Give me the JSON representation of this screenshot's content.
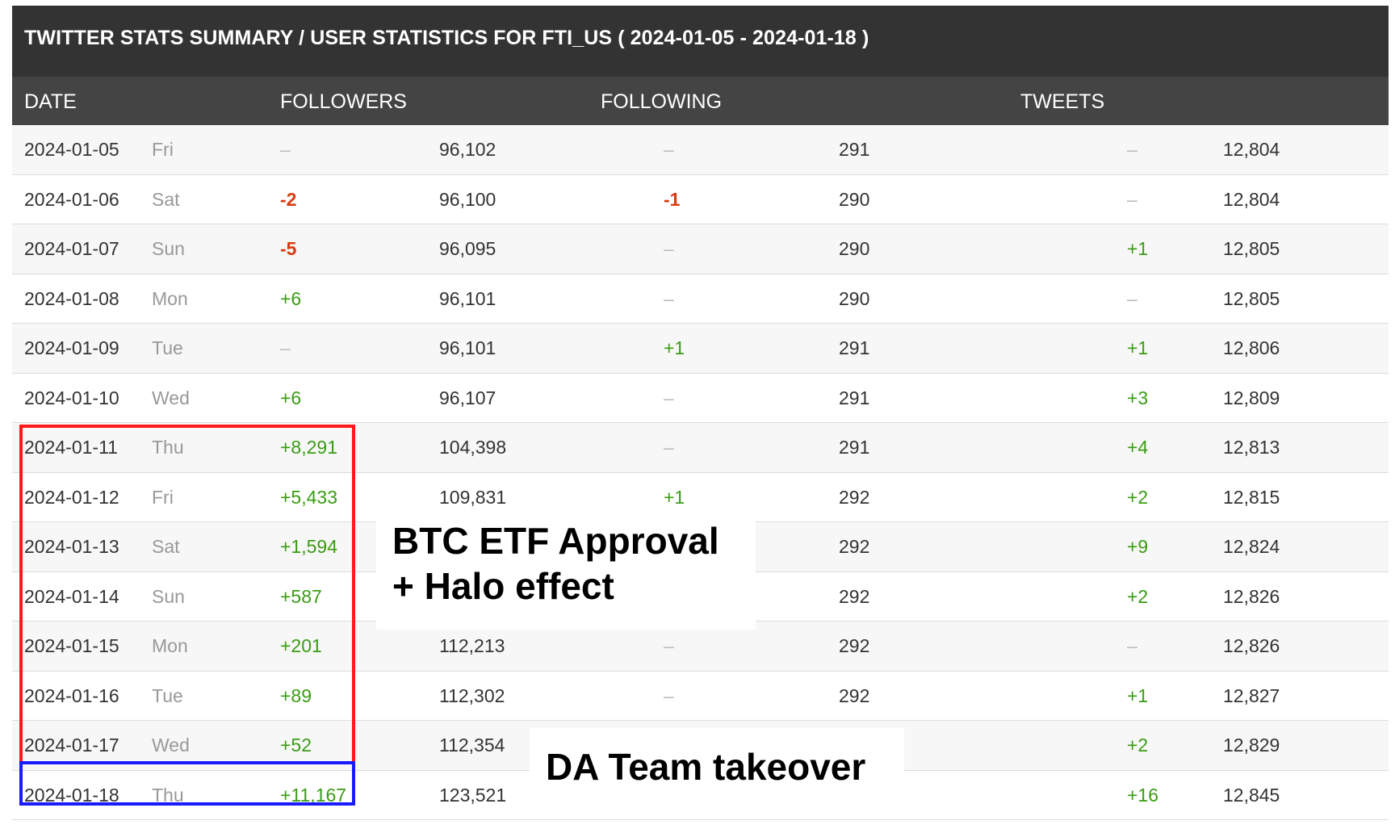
{
  "title": "TWITTER STATS SUMMARY / USER STATISTICS FOR FTI_US ( 2024-01-05 - 2024-01-18 )",
  "columns": {
    "date": "DATE",
    "followers": "FOLLOWERS",
    "following": "FOLLOWING",
    "tweets": "TWEETS"
  },
  "rows": [
    {
      "date": "2024-01-05",
      "day": "Fri",
      "followers_delta": "–",
      "followers": "96,102",
      "following_delta": "–",
      "following": "291",
      "tweets_delta": "–",
      "tweets": "12,804"
    },
    {
      "date": "2024-01-06",
      "day": "Sat",
      "followers_delta": "-2",
      "followers": "96,100",
      "following_delta": "-1",
      "following": "290",
      "tweets_delta": "–",
      "tweets": "12,804"
    },
    {
      "date": "2024-01-07",
      "day": "Sun",
      "followers_delta": "-5",
      "followers": "96,095",
      "following_delta": "–",
      "following": "290",
      "tweets_delta": "+1",
      "tweets": "12,805"
    },
    {
      "date": "2024-01-08",
      "day": "Mon",
      "followers_delta": "+6",
      "followers": "96,101",
      "following_delta": "–",
      "following": "290",
      "tweets_delta": "–",
      "tweets": "12,805"
    },
    {
      "date": "2024-01-09",
      "day": "Tue",
      "followers_delta": "–",
      "followers": "96,101",
      "following_delta": "+1",
      "following": "291",
      "tweets_delta": "+1",
      "tweets": "12,806"
    },
    {
      "date": "2024-01-10",
      "day": "Wed",
      "followers_delta": "+6",
      "followers": "96,107",
      "following_delta": "–",
      "following": "291",
      "tweets_delta": "+3",
      "tweets": "12,809"
    },
    {
      "date": "2024-01-11",
      "day": "Thu",
      "followers_delta": "+8,291",
      "followers": "104,398",
      "following_delta": "–",
      "following": "291",
      "tweets_delta": "+4",
      "tweets": "12,813"
    },
    {
      "date": "2024-01-12",
      "day": "Fri",
      "followers_delta": "+5,433",
      "followers": "109,831",
      "following_delta": "+1",
      "following": "292",
      "tweets_delta": "+2",
      "tweets": "12,815"
    },
    {
      "date": "2024-01-13",
      "day": "Sat",
      "followers_delta": "+1,594",
      "followers": "",
      "following_delta": "",
      "following": "292",
      "tweets_delta": "+9",
      "tweets": "12,824"
    },
    {
      "date": "2024-01-14",
      "day": "Sun",
      "followers_delta": "+587",
      "followers": "",
      "following_delta": "",
      "following": "292",
      "tweets_delta": "+2",
      "tweets": "12,826"
    },
    {
      "date": "2024-01-15",
      "day": "Mon",
      "followers_delta": "+201",
      "followers": "112,213",
      "following_delta": "–",
      "following": "292",
      "tweets_delta": "–",
      "tweets": "12,826"
    },
    {
      "date": "2024-01-16",
      "day": "Tue",
      "followers_delta": "+89",
      "followers": "112,302",
      "following_delta": "–",
      "following": "292",
      "tweets_delta": "+1",
      "tweets": "12,827"
    },
    {
      "date": "2024-01-17",
      "day": "Wed",
      "followers_delta": "+52",
      "followers": "112,354",
      "following_delta": "",
      "following": "",
      "tweets_delta": "+2",
      "tweets": "12,829"
    },
    {
      "date": "2024-01-18",
      "day": "Thu",
      "followers_delta": "+11,167",
      "followers": "123,521",
      "following_delta": "",
      "following": "",
      "tweets_delta": "+16",
      "tweets": "12,845"
    }
  ],
  "annotations": {
    "note1_line1": "BTC ETF Approval",
    "note1_line2": "+ Halo effect",
    "note2": "DA Team takeover"
  },
  "colors": {
    "positive": "#3a9c14",
    "negative": "#d93b12",
    "highlight_red": "#ff1a1a",
    "highlight_blue": "#1a1aff"
  }
}
